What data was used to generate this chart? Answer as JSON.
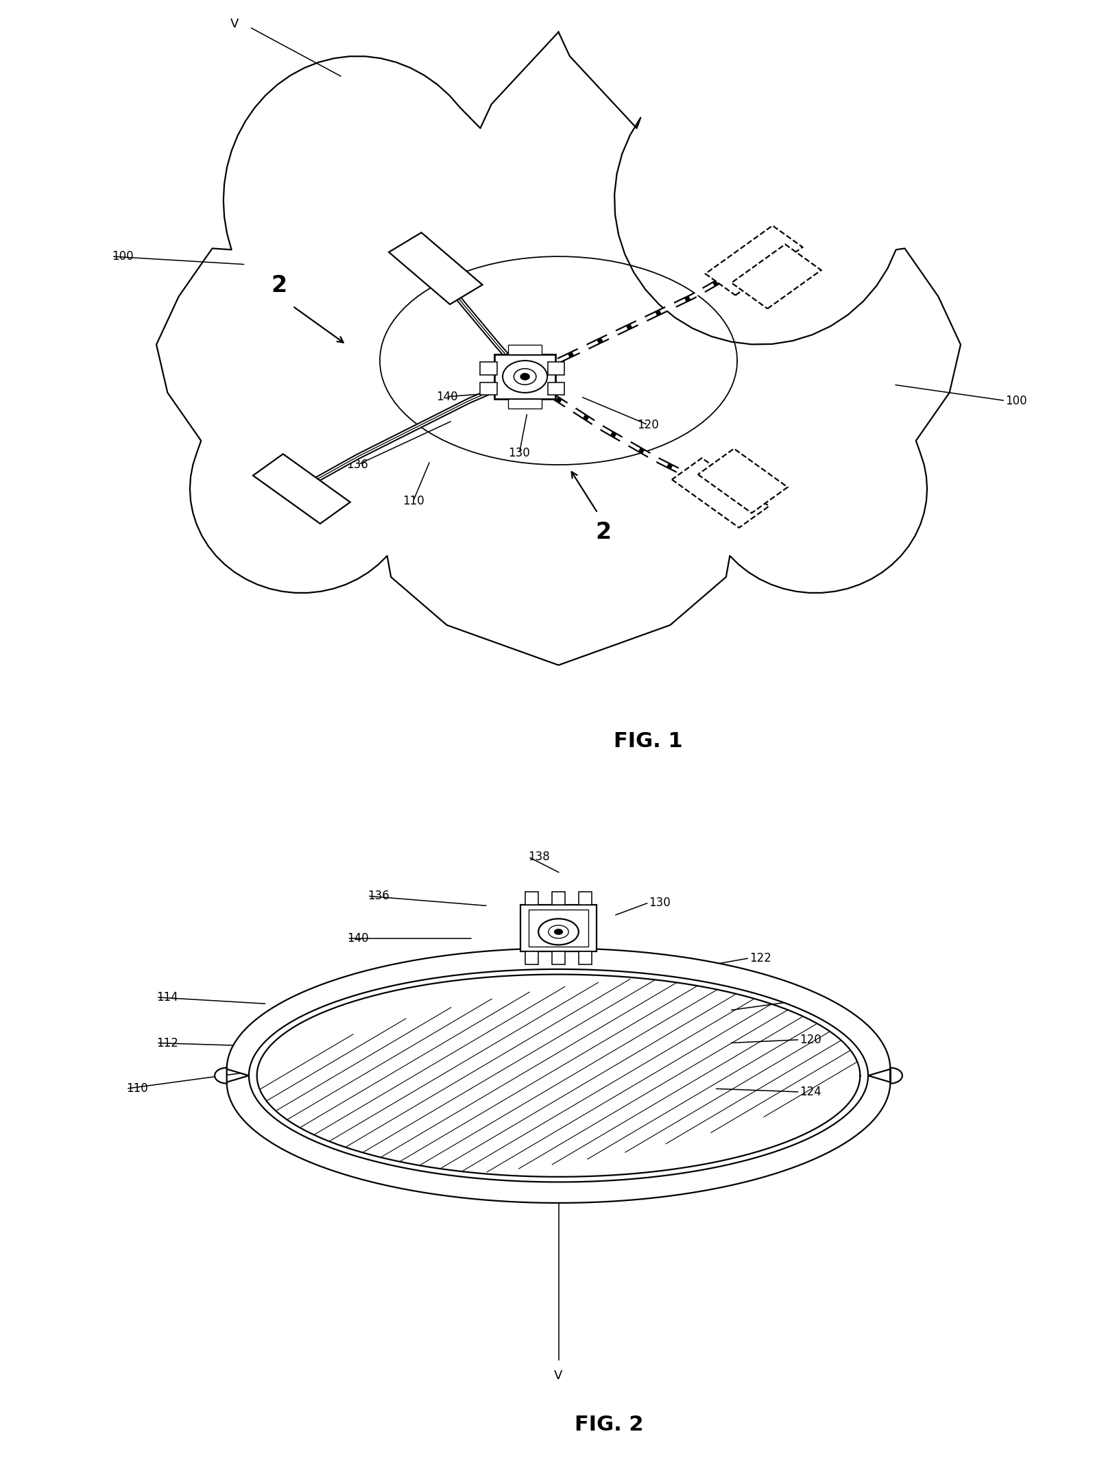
{
  "background_color": "#ffffff",
  "fig_width": 16.29,
  "fig_height": 21.65,
  "lw": 1.6,
  "lc": "#000000",
  "fig1_label": "FIG. 1",
  "fig2_label": "FIG. 2"
}
